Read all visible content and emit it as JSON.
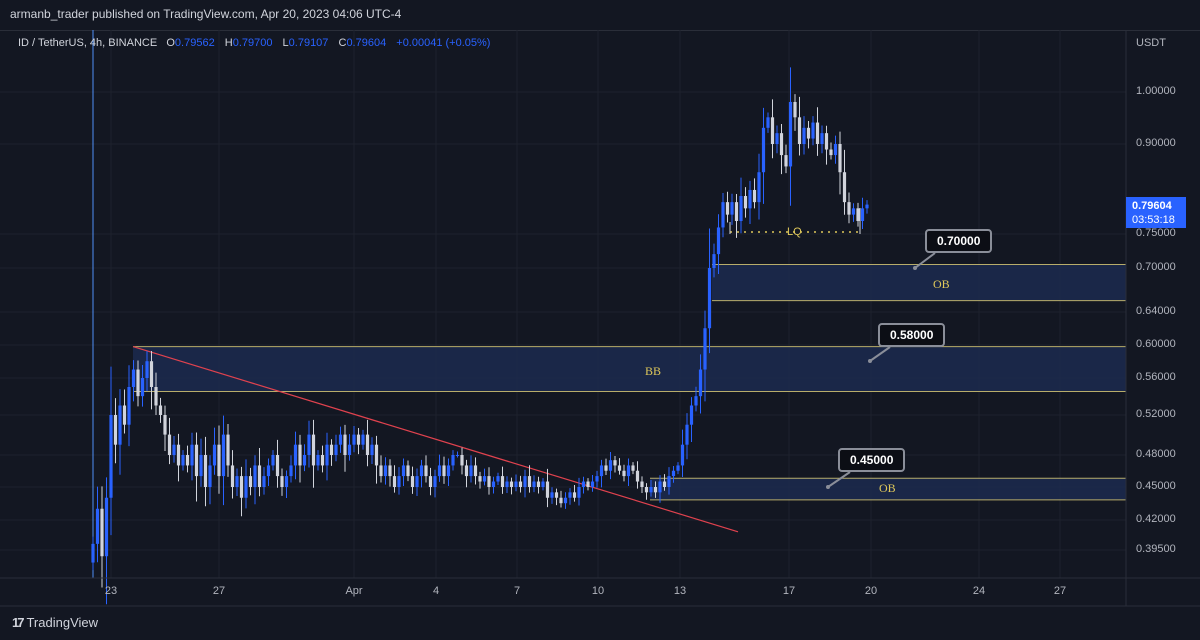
{
  "header": {
    "published": "armanb_trader published on TradingView.com, Apr 20, 2023 04:06 UTC-4",
    "symbol": "ID / TetherUS, 4h, BINANCE",
    "o_label": "O",
    "o": "0.79562",
    "h_label": "H",
    "h": "0.79700",
    "l_label": "L",
    "l": "0.79107",
    "c_label": "C",
    "c": "0.79604",
    "change": "+0.00041 (+0.05%)"
  },
  "price_axis": {
    "unit": "USDT",
    "last_price": "0.79604",
    "countdown": "03:53:18"
  },
  "footer": {
    "brand": "TradingView",
    "icon": "tradingview-logo-icon"
  },
  "colors": {
    "background": "#131722",
    "up": "#2962ff",
    "down": "#d1d4dc",
    "trendline": "#e0424e",
    "zone_border": "#b8ad6a",
    "zone_fill": "#1c2a4f",
    "label": "#e0c95a"
  },
  "annotations": {
    "lq": "LQ",
    "ob_upper": {
      "label": "OB",
      "callout": "0.70000"
    },
    "bb": {
      "label": "BB",
      "callout": "0.58000"
    },
    "ob_lower": {
      "label": "OB",
      "callout": "0.45000"
    }
  },
  "chart_data": {
    "type": "candlestick",
    "title": "ID / TetherUS, 4h, BINANCE",
    "ylabel": "USDT",
    "yscale": "log",
    "ylim": [
      0.375,
      1.06
    ],
    "y_ticks": [
      "1.00000",
      "0.90000",
      "0.75000",
      "0.70000",
      "0.64000",
      "0.60000",
      "0.56000",
      "0.52000",
      "0.48000",
      "0.45000",
      "0.42000",
      "0.39500"
    ],
    "x_ticks": [
      "23",
      "27",
      "Apr",
      "4",
      "7",
      "10",
      "13",
      "17",
      "20",
      "24",
      "27"
    ],
    "first_open": 0.385,
    "closes": [
      0.4,
      0.43,
      0.39,
      0.44,
      0.52,
      0.49,
      0.53,
      0.51,
      0.55,
      0.57,
      0.54,
      0.56,
      0.58,
      0.55,
      0.53,
      0.52,
      0.5,
      0.48,
      0.49,
      0.47,
      0.48,
      0.47,
      0.49,
      0.46,
      0.48,
      0.45,
      0.47,
      0.49,
      0.46,
      0.5,
      0.47,
      0.45,
      0.46,
      0.44,
      0.46,
      0.45,
      0.47,
      0.45,
      0.46,
      0.47,
      0.48,
      0.46,
      0.45,
      0.46,
      0.47,
      0.49,
      0.47,
      0.48,
      0.5,
      0.47,
      0.48,
      0.47,
      0.49,
      0.48,
      0.49,
      0.5,
      0.48,
      0.49,
      0.5,
      0.49,
      0.5,
      0.48,
      0.49,
      0.47,
      0.46,
      0.47,
      0.46,
      0.45,
      0.46,
      0.47,
      0.46,
      0.45,
      0.46,
      0.47,
      0.46,
      0.45,
      0.46,
      0.47,
      0.46,
      0.47,
      0.48,
      0.48,
      0.47,
      0.46,
      0.47,
      0.46,
      0.455,
      0.46,
      0.45,
      0.455,
      0.46,
      0.45,
      0.455,
      0.45,
      0.455,
      0.45,
      0.46,
      0.45,
      0.455,
      0.45,
      0.455,
      0.44,
      0.445,
      0.44,
      0.435,
      0.44,
      0.445,
      0.44,
      0.45,
      0.455,
      0.45,
      0.455,
      0.46,
      0.47,
      0.465,
      0.475,
      0.47,
      0.465,
      0.46,
      0.47,
      0.465,
      0.455,
      0.45,
      0.445,
      0.45,
      0.445,
      0.455,
      0.45,
      0.46,
      0.465,
      0.47,
      0.49,
      0.51,
      0.53,
      0.54,
      0.57,
      0.62,
      0.7,
      0.72,
      0.76,
      0.8,
      0.78,
      0.8,
      0.77,
      0.81,
      0.79,
      0.82,
      0.8,
      0.85,
      0.93,
      0.95,
      0.9,
      0.92,
      0.88,
      0.86,
      0.98,
      0.95,
      0.9,
      0.93,
      0.91,
      0.94,
      0.9,
      0.92,
      0.89,
      0.88,
      0.9,
      0.85,
      0.8,
      0.78,
      0.79,
      0.77,
      0.79,
      0.79604
    ],
    "zones": [
      {
        "name": "OB",
        "top": 0.705,
        "bottom": 0.655
      },
      {
        "name": "BB",
        "top": 0.598,
        "bottom": 0.545
      },
      {
        "name": "OB",
        "top": 0.458,
        "bottom": 0.438
      }
    ],
    "trendline": {
      "from_price": 0.598,
      "to_price": 0.41
    }
  }
}
